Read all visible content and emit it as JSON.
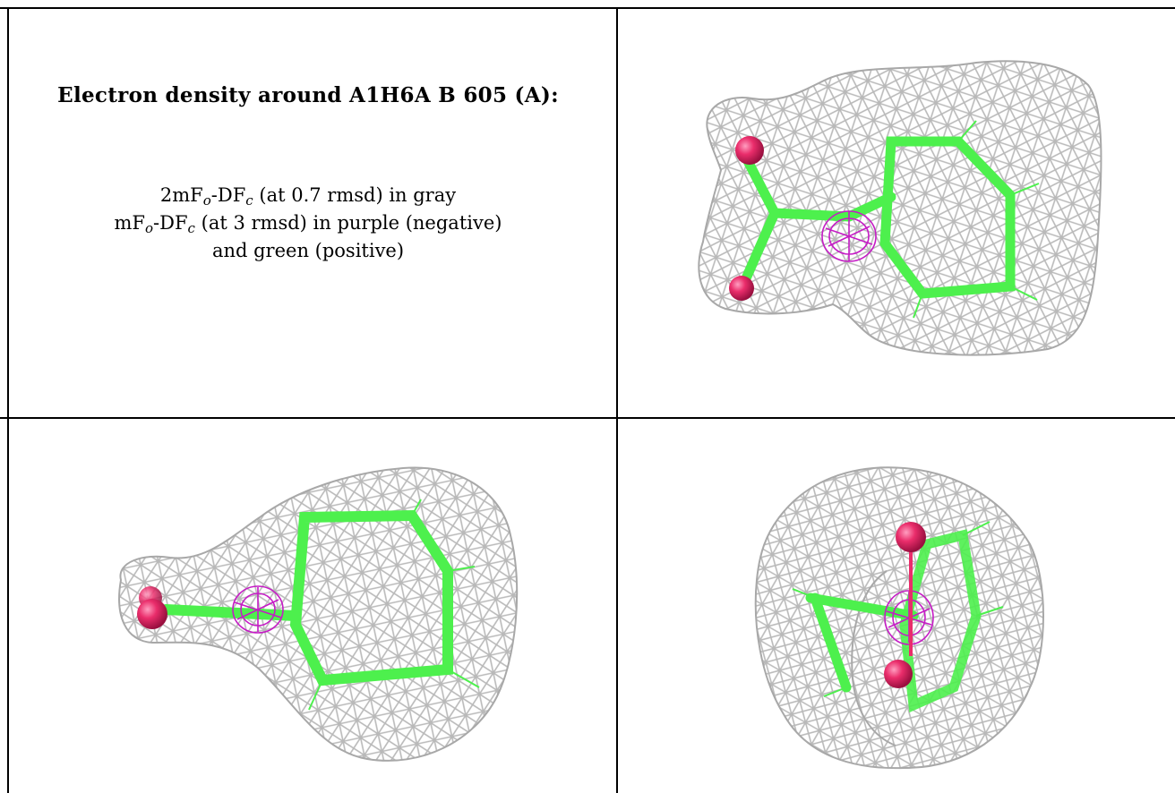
{
  "title": "Electron density around A1H6A B 605 (A):",
  "legend": {
    "line1": {
      "pre": "2mF",
      "sub1": "o",
      "mid": "-DF",
      "sub2": "c",
      "post": " (at 0.7 rmsd) in gray"
    },
    "line2": {
      "pre": "mF",
      "sub1": "o",
      "mid": "-DF",
      "sub2": "c",
      "post": " (at 3 rmsd) in purple (negative)"
    },
    "line3": "and green (positive)"
  },
  "colors": {
    "mesh": "#b9b9b9",
    "carbon": "#4df04d",
    "oxygen": "#ea2d6b",
    "negative_density": "#c51cc5",
    "grid_line": "#000000"
  }
}
